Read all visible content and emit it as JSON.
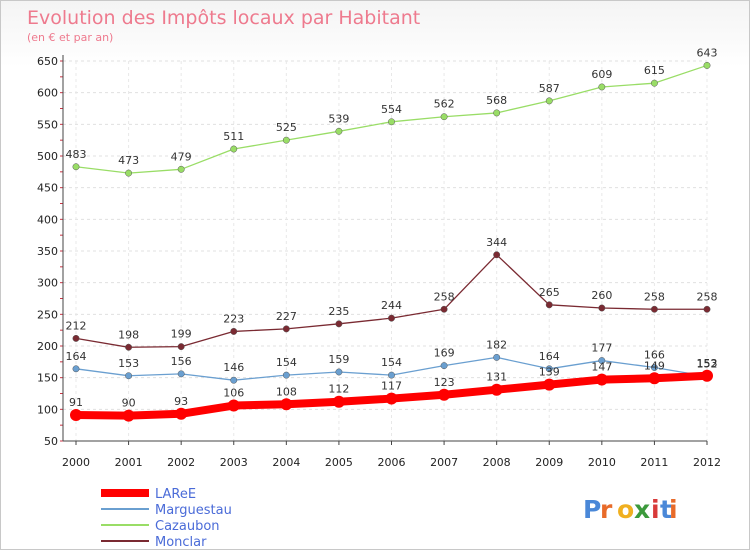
{
  "chart_data": {
    "type": "line",
    "title": "Evolution des Impôts locaux par Habitant",
    "subtitle": "(en € et par an)",
    "x": [
      "2000",
      "2001",
      "2002",
      "2003",
      "2004",
      "2005",
      "2006",
      "2007",
      "2008",
      "2009",
      "2010",
      "2011",
      "2012"
    ],
    "ylim": [
      50,
      650
    ],
    "yticks": [
      50,
      100,
      150,
      200,
      250,
      300,
      350,
      400,
      450,
      500,
      550,
      600,
      650
    ],
    "grid": true,
    "legend_position": "bottom-left",
    "series": [
      {
        "name": "LAReE",
        "color": "#ff0000",
        "values": [
          91,
          90,
          93,
          106,
          108,
          112,
          117,
          123,
          131,
          139,
          147,
          149,
          153
        ]
      },
      {
        "name": "Marguestau",
        "color": "#6a9fd0",
        "values": [
          164,
          153,
          156,
          146,
          154,
          159,
          154,
          169,
          182,
          164,
          177,
          166,
          152
        ]
      },
      {
        "name": "Cazaubon",
        "color": "#99dd66",
        "values": [
          483,
          473,
          479,
          511,
          525,
          539,
          554,
          562,
          568,
          587,
          609,
          615,
          643
        ]
      },
      {
        "name": "Monclar",
        "color": "#7a2a32",
        "values": [
          212,
          198,
          199,
          223,
          227,
          235,
          244,
          258,
          344,
          265,
          260,
          258,
          258
        ]
      }
    ]
  },
  "branding": {
    "logo_text": "Proxiti"
  }
}
